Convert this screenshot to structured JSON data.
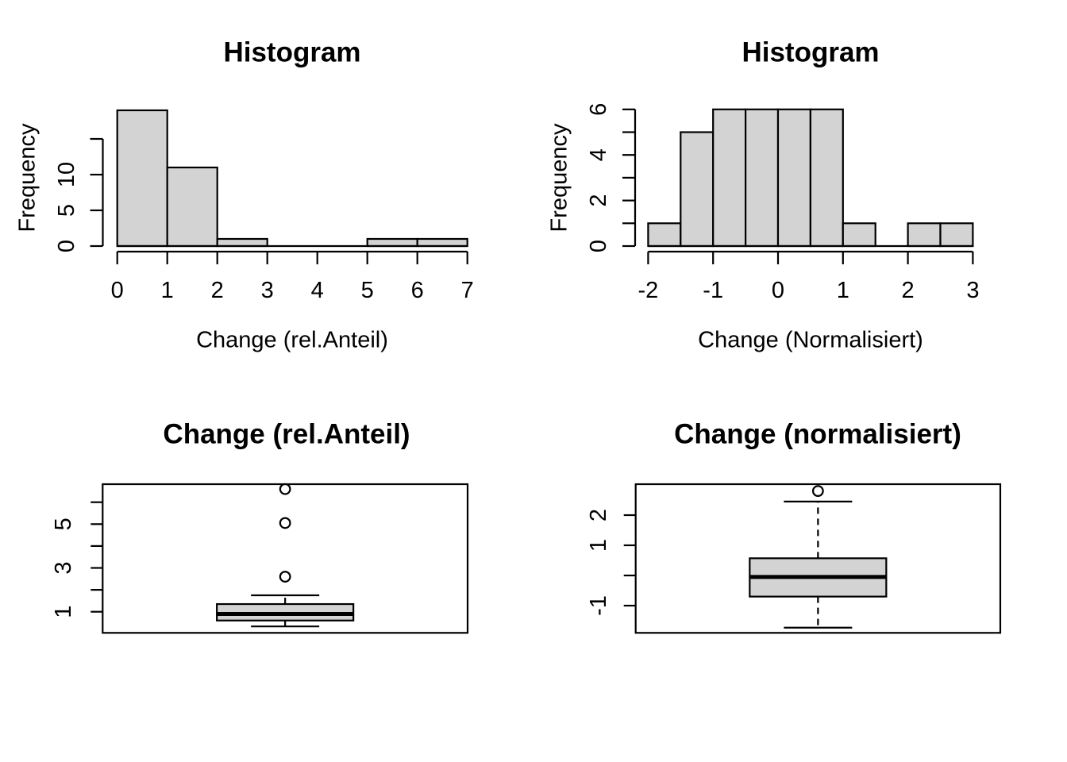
{
  "page": {
    "background": "#ffffff"
  },
  "style": {
    "bar_fill": "#d3d3d3",
    "line_color": "#000000"
  },
  "chart_data": [
    {
      "id": "histogram-rel-anteil",
      "type": "bar",
      "subtype": "histogram",
      "title": "Histogram",
      "xlabel": "Change (rel.Anteil)",
      "ylabel": "Frequency",
      "bin_start": 0,
      "bin_width": 1,
      "counts": [
        19,
        11,
        1,
        0,
        0,
        1,
        1
      ],
      "x_tick_values": [
        0,
        1,
        2,
        3,
        4,
        5,
        6,
        7
      ],
      "x_tick_labels": [
        "0",
        "1",
        "2",
        "3",
        "4",
        "5",
        "6",
        "7"
      ],
      "y_tick_values": [
        0,
        5,
        10,
        15
      ],
      "y_tick_labels": [
        "0",
        "5",
        "10",
        ""
      ],
      "xlim": [
        0,
        7
      ],
      "ylim": [
        0,
        19
      ],
      "grid": false,
      "legend": false
    },
    {
      "id": "histogram-normalisiert",
      "type": "bar",
      "subtype": "histogram",
      "title": "Histogram",
      "xlabel": "Change (Normalisiert)",
      "ylabel": "Frequency",
      "bin_start": -2,
      "bin_width": 0.5,
      "counts": [
        1,
        5,
        6,
        6,
        6,
        6,
        1,
        0,
        1,
        1
      ],
      "x_tick_values": [
        -2,
        -1,
        0,
        1,
        2,
        3
      ],
      "x_tick_labels": [
        "-2",
        "-1",
        "0",
        "1",
        "2",
        "3"
      ],
      "y_tick_values": [
        0,
        1,
        2,
        3,
        4,
        5,
        6
      ],
      "y_tick_labels": [
        "0",
        "",
        "2",
        "",
        "4",
        "",
        "6"
      ],
      "xlim": [
        -2,
        3
      ],
      "ylim": [
        0,
        6
      ],
      "grid": false,
      "legend": false
    },
    {
      "id": "boxplot-rel-anteil",
      "type": "boxplot",
      "title": "Change (rel.Anteil)",
      "stats": {
        "whisker_low": 0.33,
        "q1": 0.6,
        "median": 0.9,
        "q3": 1.35,
        "whisker_high": 1.75
      },
      "outliers": [
        2.6,
        5.05,
        6.6
      ],
      "y_tick_values": [
        1,
        2,
        3,
        4,
        5,
        6
      ],
      "y_tick_labels": [
        "1",
        "",
        "3",
        "",
        "5",
        ""
      ],
      "ylim": [
        0.04,
        6.85
      ],
      "grid": false,
      "legend": false
    },
    {
      "id": "boxplot-normalisiert",
      "type": "boxplot",
      "title": "Change (normalisiert)",
      "stats": {
        "whisker_low": -1.73,
        "q1": -0.7,
        "median": -0.05,
        "q3": 0.57,
        "whisker_high": 2.45
      },
      "outliers": [
        2.8
      ],
      "y_tick_values": [
        -1,
        0,
        1,
        2
      ],
      "y_tick_labels": [
        "-1",
        "",
        "1",
        "2"
      ],
      "ylim": [
        -1.9,
        2.95
      ],
      "grid": false,
      "legend": false
    }
  ]
}
